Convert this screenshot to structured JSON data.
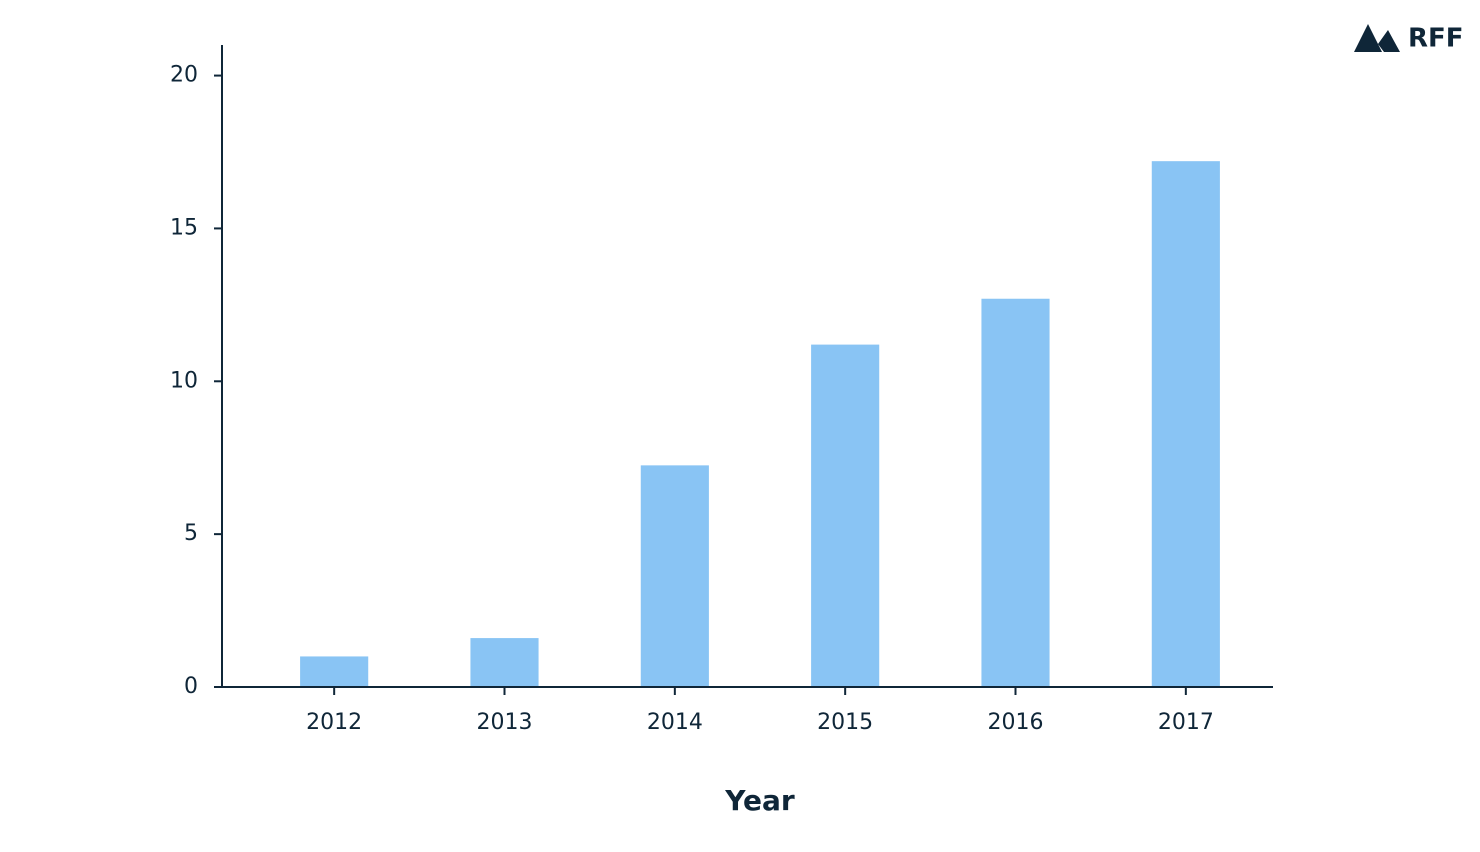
{
  "chart_data": {
    "type": "bar",
    "x_label": "Year",
    "categories": [
      "2012",
      "2013",
      "2014",
      "2015",
      "2016",
      "2017"
    ],
    "values": [
      1,
      1.6,
      7.25,
      11.2,
      12.7,
      17.2
    ],
    "color": "#89c4f4",
    "ylim": [
      0,
      21
    ],
    "yticks": [
      0,
      5,
      10,
      15,
      20
    ],
    "grid": false
  },
  "logo": "RFF"
}
